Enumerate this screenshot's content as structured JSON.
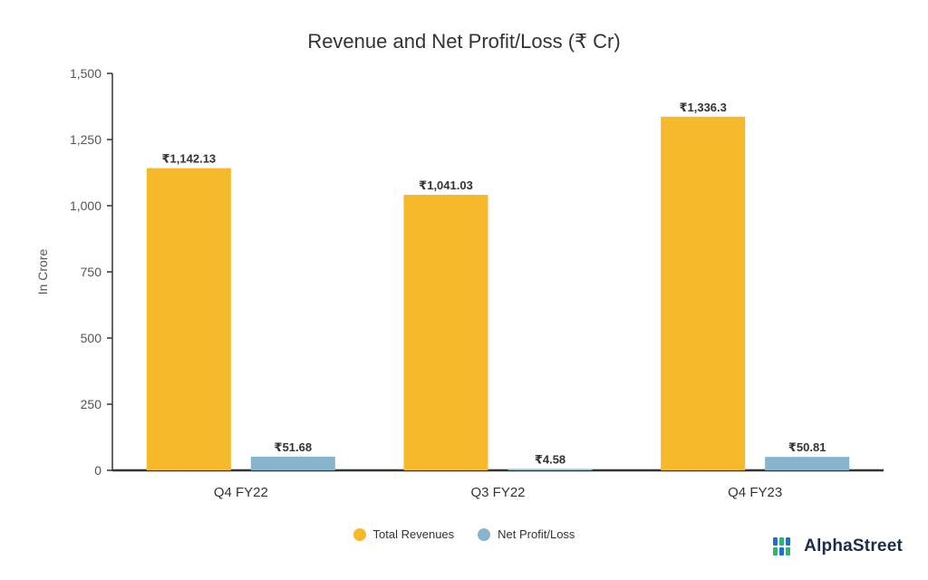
{
  "chart_data": {
    "type": "bar",
    "title": "Revenue and Net Profit/Loss (₹ Cr)",
    "ylabel": "In Crore",
    "xlabel": "",
    "ylim": [
      0,
      1500
    ],
    "yticks": [
      0,
      250,
      500,
      750,
      1000,
      1250,
      1500
    ],
    "ytick_labels": [
      "0",
      "250",
      "500",
      "750",
      "1,000",
      "1,250",
      "1,500"
    ],
    "categories": [
      "Q4 FY22",
      "Q3 FY22",
      "Q4 FY23"
    ],
    "series": [
      {
        "name": "Total Revenues",
        "color": "#f6b92b",
        "values": [
          1142.13,
          1041.03,
          1336.3
        ],
        "labels": [
          "₹1,142.13",
          "₹1,041.03",
          "₹1,336.3"
        ]
      },
      {
        "name": "Net Profit/Loss",
        "color": "#86b5cd",
        "values": [
          51.68,
          4.58,
          50.81
        ],
        "labels": [
          "₹51.68",
          "₹4.58",
          "₹50.81"
        ]
      }
    ],
    "legend_position": "bottom-center"
  },
  "brand": {
    "name": "AlphaStreet",
    "icon": "alphastreet-logo-icon",
    "colors": [
      "#1e6fd9",
      "#2bb673"
    ]
  }
}
